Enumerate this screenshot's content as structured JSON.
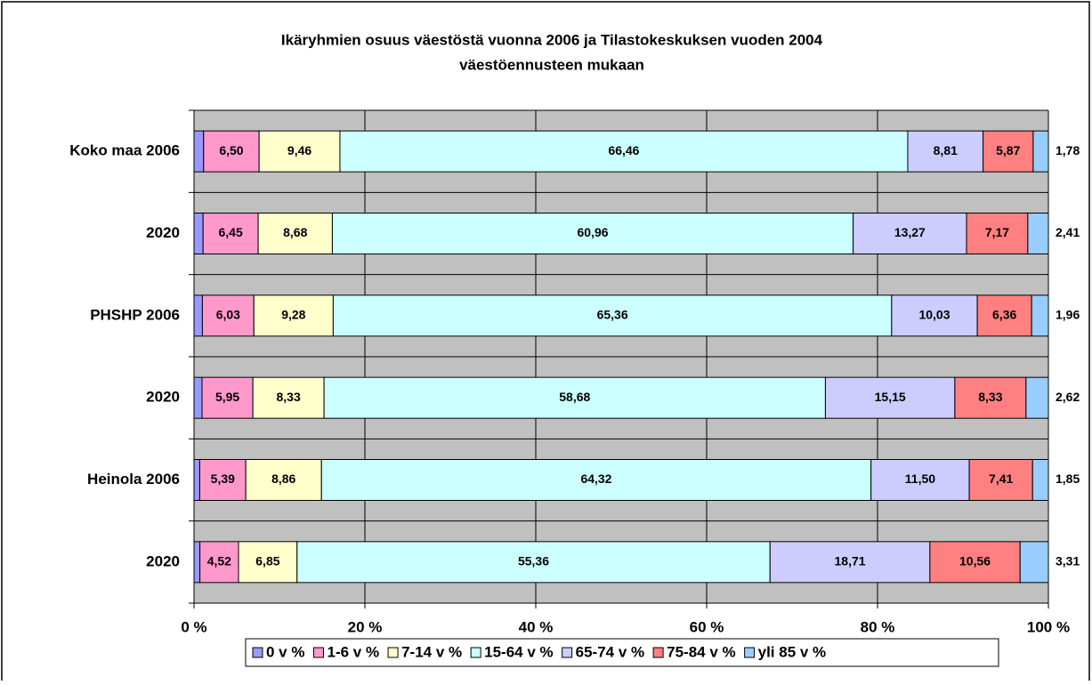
{
  "chart_data": {
    "type": "stacked_barh",
    "title": [
      "Ikäryhmien osuus väestöstä vuonna 2006 ja Tilastokeskuksen vuoden 2004",
      "väestöennusteen mukaan"
    ],
    "categories": [
      "Koko maa 2006",
      "2020",
      "PHSHP 2006",
      "2020",
      "Heinola 2006",
      "2020"
    ],
    "series": [
      {
        "name": "0 v %",
        "color": "#9999ff",
        "values": [
          1.12,
          1.06,
          0.98,
          0.94,
          0.67,
          0.69
        ]
      },
      {
        "name": "1-6 v %",
        "color": "#ff99cc",
        "values": [
          6.5,
          6.45,
          6.03,
          5.95,
          5.39,
          4.52
        ],
        "value_labels": [
          "6,50",
          "6,45",
          "6,03",
          "5,95",
          "5,39",
          "4,52"
        ]
      },
      {
        "name": "7-14 v %",
        "color": "#ffffcc",
        "values": [
          9.46,
          8.68,
          9.28,
          8.33,
          8.86,
          6.85
        ],
        "value_labels": [
          "9,46",
          "8,68",
          "9,28",
          "8,33",
          "8,86",
          "6,85"
        ]
      },
      {
        "name": "15-64 v %",
        "color": "#ccffff",
        "values": [
          66.46,
          60.96,
          65.36,
          58.68,
          64.32,
          55.36
        ],
        "value_labels": [
          "66,46",
          "60,96",
          "65,36",
          "58,68",
          "64,32",
          "55,36"
        ]
      },
      {
        "name": "65-74 v %",
        "color": "#ccccff",
        "values": [
          8.81,
          13.27,
          10.03,
          15.15,
          11.5,
          18.71
        ],
        "value_labels": [
          "8,81",
          "13,27",
          "10,03",
          "15,15",
          "11,50",
          "18,71"
        ]
      },
      {
        "name": "75-84 v %",
        "color": "#ff8080",
        "values": [
          5.87,
          7.17,
          6.36,
          8.33,
          7.41,
          10.56
        ],
        "value_labels": [
          "5,87",
          "7,17",
          "6,36",
          "8,33",
          "7,41",
          "10,56"
        ]
      },
      {
        "name": "yli 85 v %",
        "color": "#99ccff",
        "values": [
          1.78,
          2.41,
          1.96,
          2.62,
          1.85,
          3.31
        ],
        "value_labels": [
          "1,78",
          "2,41",
          "1,96",
          "2,62",
          "1,85",
          "3,31"
        ]
      }
    ],
    "xlim": [
      0,
      100
    ],
    "xticks": [
      {
        "value": 0,
        "label": "0 %"
      },
      {
        "value": 20,
        "label": "20 %"
      },
      {
        "value": 40,
        "label": "40 %"
      },
      {
        "value": 60,
        "label": "60 %"
      },
      {
        "value": 80,
        "label": "80 %"
      },
      {
        "value": 100,
        "label": "100 %"
      }
    ],
    "grid": true,
    "legend": "bottom"
  }
}
